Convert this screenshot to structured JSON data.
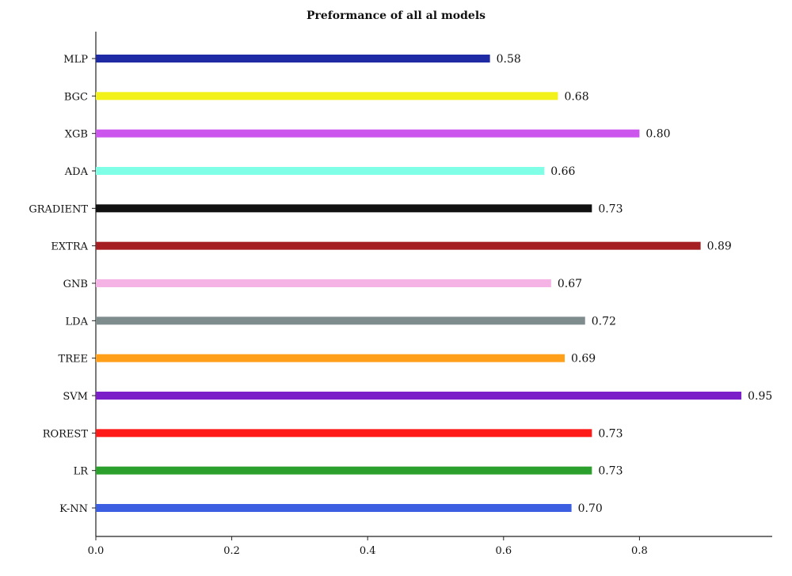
{
  "chart_data": {
    "type": "bar",
    "orientation": "horizontal",
    "title": "Preformance of all al models",
    "xlabel": "",
    "ylabel": "",
    "xlim": [
      0,
      1.0
    ],
    "xticks": [
      "0.0",
      "0.2",
      "0.4",
      "0.6",
      "0.8"
    ],
    "grid": false,
    "categories": [
      "K-NN",
      "LR",
      "ROREST",
      "SVM",
      "TREE",
      "LDA",
      "GNB",
      "EXTRA",
      "GRADIENT",
      "ADA",
      "XGB",
      "BGC",
      "MLP"
    ],
    "values": [
      0.7,
      0.73,
      0.73,
      0.95,
      0.69,
      0.72,
      0.67,
      0.89,
      0.73,
      0.66,
      0.8,
      0.68,
      0.58
    ],
    "value_labels": [
      "0.70",
      "0.73",
      "0.73",
      "0.95",
      "0.69",
      "0.72",
      "0.67",
      "0.89",
      "0.73",
      "0.66",
      "0.80",
      "0.68",
      "0.58"
    ],
    "colors": [
      "#3b5fe0",
      "#2ca02c",
      "#ff1a1a",
      "#7b1fc8",
      "#ff9f1a",
      "#7f8c8d",
      "#f4b3e4",
      "#a51e22",
      "#111111",
      "#7fffe6",
      "#cc55ee",
      "#f2f21a",
      "#1f2aa5"
    ]
  }
}
